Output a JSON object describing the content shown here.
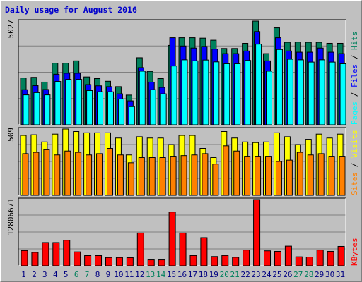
{
  "title": "Daily usage for August 2016",
  "colors": {
    "hits": "#00805c",
    "files": "#0000ff",
    "pages": "#00ffff",
    "visits": "#ffff00",
    "sites": "#ff8000",
    "kbytes": "#ff0000",
    "plot_bg": "#c0c0c0",
    "grid": "#808080",
    "weekend_label": "#00805c",
    "weekday_label": "#000080"
  },
  "chart_data": [
    {
      "type": "bar",
      "title": "Daily usage for August 2016",
      "panel": "hits-files-pages",
      "ymax_label": "5027",
      "ylim": [
        0,
        5027
      ],
      "grid": true,
      "categories": [
        "1",
        "2",
        "3",
        "4",
        "5",
        "6",
        "7",
        "8",
        "9",
        "10",
        "11",
        "12",
        "13",
        "14",
        "15",
        "16",
        "17",
        "18",
        "19",
        "20",
        "21",
        "22",
        "23",
        "24",
        "25",
        "26",
        "27",
        "28",
        "29",
        "30",
        "31"
      ],
      "weekend": [
        6,
        7,
        13,
        14,
        20,
        21,
        27,
        28
      ],
      "legend": [
        {
          "key": "pages",
          "label": "Pages"
        },
        {
          "key": "files",
          "label": "Files"
        },
        {
          "key": "hits",
          "label": "Hits"
        }
      ],
      "series": [
        {
          "name": "Hits",
          "values": [
            2270,
            2300,
            2070,
            2990,
            2990,
            3100,
            2320,
            2240,
            2110,
            1850,
            1440,
            3250,
            2590,
            2240,
            3850,
            4220,
            4220,
            4200,
            4100,
            3700,
            3700,
            3950,
            5027,
            3450,
            4700,
            4000,
            4010,
            4000,
            4000,
            3950,
            3950
          ]
        },
        {
          "name": "Files",
          "values": [
            1700,
            1900,
            1710,
            2450,
            2500,
            2500,
            1950,
            1890,
            1850,
            1500,
            1160,
            2770,
            2070,
            1810,
            4220,
            3820,
            3720,
            3800,
            3670,
            3450,
            3450,
            3580,
            4520,
            3100,
            4220,
            3580,
            3520,
            3520,
            3720,
            3520,
            3450
          ]
        },
        {
          "name": "Pages",
          "values": [
            1450,
            1560,
            1450,
            2100,
            2200,
            2200,
            1660,
            1600,
            1600,
            1250,
            880,
            2600,
            1700,
            1500,
            2850,
            3150,
            3100,
            3140,
            3050,
            2960,
            2960,
            3120,
            3910,
            2600,
            3650,
            3180,
            3150,
            3040,
            3150,
            3040,
            2960
          ]
        }
      ]
    },
    {
      "type": "bar",
      "panel": "visits-sites",
      "ymax_label": "509",
      "ylim": [
        0,
        509
      ],
      "grid": true,
      "legend": [
        {
          "key": "sites",
          "label": "Sites"
        },
        {
          "key": "visits",
          "label": "Visits"
        }
      ],
      "series": [
        {
          "name": "Visits",
          "values": [
            460,
            465,
            410,
            470,
            509,
            490,
            480,
            480,
            480,
            440,
            310,
            450,
            440,
            440,
            390,
            460,
            460,
            360,
            290,
            490,
            440,
            410,
            405,
            410,
            480,
            450,
            390,
            430,
            470,
            440,
            470
          ]
        },
        {
          "name": "Sites",
          "values": [
            320,
            330,
            350,
            310,
            340,
            330,
            310,
            320,
            360,
            310,
            250,
            290,
            290,
            290,
            300,
            305,
            310,
            320,
            240,
            380,
            340,
            300,
            300,
            300,
            260,
            270,
            330,
            310,
            320,
            300,
            300
          ]
        }
      ]
    },
    {
      "type": "bar",
      "panel": "kbytes",
      "ymax_label": "12806671",
      "ylim": [
        0,
        12806671
      ],
      "grid": true,
      "legend": [
        {
          "key": "kbytes",
          "label": "KBytes"
        }
      ],
      "series": [
        {
          "name": "KBytes",
          "values": [
            2950000,
            2600000,
            4500000,
            4500000,
            4950000,
            2700000,
            1980000,
            1980000,
            1600000,
            1600000,
            1580000,
            6350000,
            1150000,
            1150000,
            10400000,
            6350000,
            1990000,
            5450000,
            1800000,
            2000000,
            1650000,
            3050000,
            12806671,
            2900000,
            2800000,
            3800000,
            1750000,
            1700000,
            3050000,
            2800000,
            3750000
          ]
        }
      ]
    }
  ]
}
